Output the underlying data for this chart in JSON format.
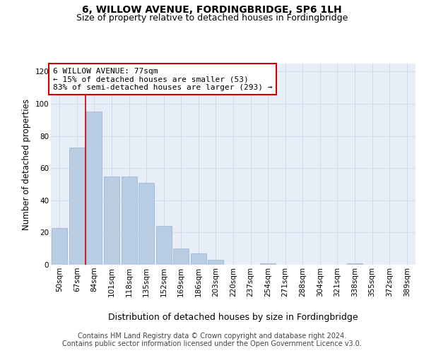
{
  "title": "6, WILLOW AVENUE, FORDINGBRIDGE, SP6 1LH",
  "subtitle": "Size of property relative to detached houses in Fordingbridge",
  "xlabel": "Distribution of detached houses by size in Fordingbridge",
  "ylabel": "Number of detached properties",
  "categories": [
    "50sqm",
    "67sqm",
    "84sqm",
    "101sqm",
    "118sqm",
    "135sqm",
    "152sqm",
    "169sqm",
    "186sqm",
    "203sqm",
    "220sqm",
    "237sqm",
    "254sqm",
    "271sqm",
    "288sqm",
    "304sqm",
    "321sqm",
    "338sqm",
    "355sqm",
    "372sqm",
    "389sqm"
  ],
  "values": [
    23,
    73,
    95,
    55,
    55,
    51,
    24,
    10,
    7,
    3,
    0,
    0,
    1,
    0,
    0,
    0,
    0,
    1,
    0,
    0,
    0
  ],
  "bar_color": "#b8cce4",
  "bar_edge_color": "#9ab0cc",
  "grid_color": "#d0daea",
  "background_color": "#ffffff",
  "plot_bg_color": "#e8eef8",
  "vline_x": 1.5,
  "vline_color": "#cc0000",
  "annotation_line1": "6 WILLOW AVENUE: 77sqm",
  "annotation_line2": "← 15% of detached houses are smaller (53)",
  "annotation_line3": "83% of semi-detached houses are larger (293) →",
  "annotation_box_color": "#ffffff",
  "annotation_box_edge_color": "#cc0000",
  "ylim": [
    0,
    125
  ],
  "yticks": [
    0,
    20,
    40,
    60,
    80,
    100,
    120
  ],
  "footer_text": "Contains HM Land Registry data © Crown copyright and database right 2024.\nContains public sector information licensed under the Open Government Licence v3.0.",
  "title_fontsize": 10,
  "subtitle_fontsize": 9,
  "xlabel_fontsize": 9,
  "ylabel_fontsize": 8.5,
  "tick_fontsize": 7.5,
  "annotation_fontsize": 8,
  "footer_fontsize": 7
}
